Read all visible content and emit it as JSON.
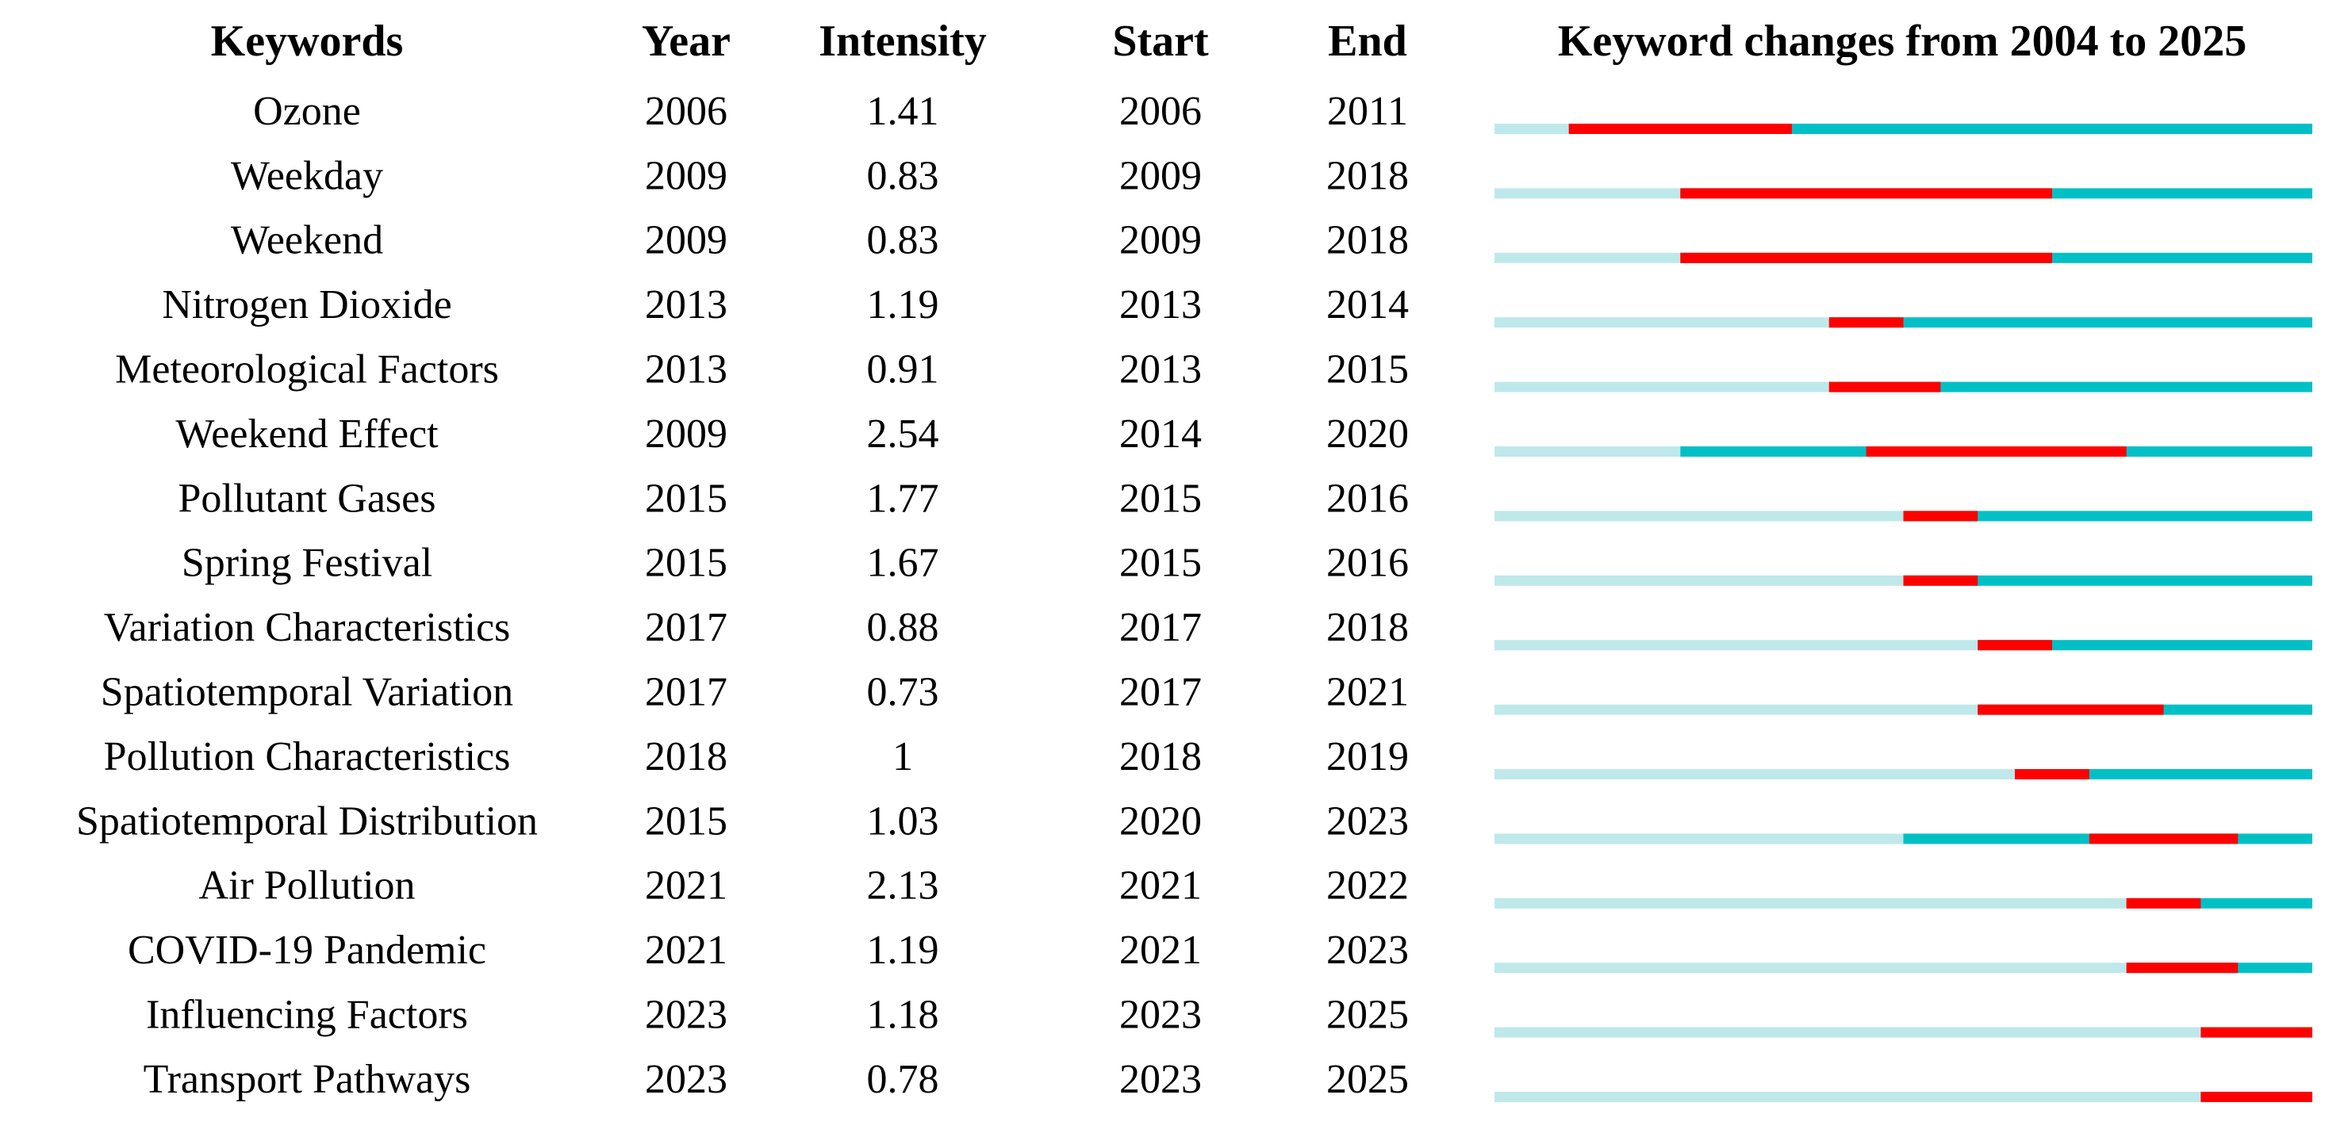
{
  "header": {
    "keywords": "Keywords",
    "year": "Year",
    "intensity": "Intensity",
    "start": "Start",
    "end": "End",
    "timeline": "Keyword changes from 2004 to 2025"
  },
  "timeline_range": [
    2004,
    2025
  ],
  "rows": [
    {
      "keyword": "Ozone",
      "year": 2006,
      "intensity": 1.41,
      "start": 2006,
      "end": 2011
    },
    {
      "keyword": "Weekday",
      "year": 2009,
      "intensity": 0.83,
      "start": 2009,
      "end": 2018
    },
    {
      "keyword": "Weekend",
      "year": 2009,
      "intensity": 0.83,
      "start": 2009,
      "end": 2018
    },
    {
      "keyword": "Nitrogen Dioxide",
      "year": 2013,
      "intensity": 1.19,
      "start": 2013,
      "end": 2014
    },
    {
      "keyword": "Meteorological Factors",
      "year": 2013,
      "intensity": 0.91,
      "start": 2013,
      "end": 2015
    },
    {
      "keyword": "Weekend Effect",
      "year": 2009,
      "intensity": 2.54,
      "start": 2014,
      "end": 2020
    },
    {
      "keyword": "Pollutant Gases",
      "year": 2015,
      "intensity": 1.77,
      "start": 2015,
      "end": 2016
    },
    {
      "keyword": "Spring Festival",
      "year": 2015,
      "intensity": 1.67,
      "start": 2015,
      "end": 2016
    },
    {
      "keyword": "Variation Characteristics",
      "year": 2017,
      "intensity": 0.88,
      "start": 2017,
      "end": 2018
    },
    {
      "keyword": "Spatiotemporal Variation",
      "year": 2017,
      "intensity": 0.73,
      "start": 2017,
      "end": 2021
    },
    {
      "keyword": "Pollution Characteristics",
      "year": 2018,
      "intensity": 1,
      "start": 2018,
      "end": 2019
    },
    {
      "keyword": "Spatiotemporal Distribution",
      "year": 2015,
      "intensity": 1.03,
      "start": 2020,
      "end": 2023
    },
    {
      "keyword": "Air Pollution",
      "year": 2021,
      "intensity": 2.13,
      "start": 2021,
      "end": 2022
    },
    {
      "keyword": "COVID-19 Pandemic",
      "year": 2021,
      "intensity": 1.19,
      "start": 2021,
      "end": 2023
    },
    {
      "keyword": "Influencing Factors",
      "year": 2023,
      "intensity": 1.18,
      "start": 2023,
      "end": 2025
    },
    {
      "keyword": "Transport Pathways",
      "year": 2023,
      "intensity": 0.78,
      "start": 2023,
      "end": 2025
    }
  ]
}
